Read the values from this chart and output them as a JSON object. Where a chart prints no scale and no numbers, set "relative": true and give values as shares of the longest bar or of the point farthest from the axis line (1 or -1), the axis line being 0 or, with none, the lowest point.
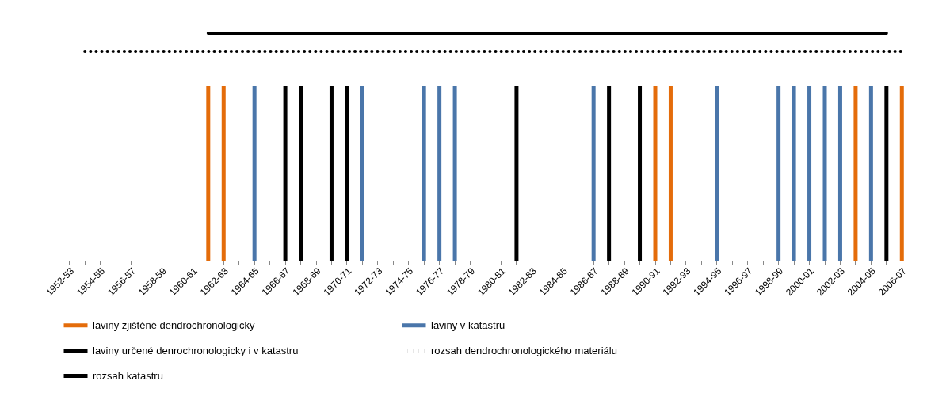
{
  "chart_data": {
    "type": "bar",
    "relative": true,
    "legend": "bottom",
    "grid": false,
    "categories": [
      "1952-53",
      null,
      "1954-55",
      null,
      "1956-57",
      null,
      "1958-59",
      null,
      "1960-61",
      null,
      "1962-63",
      null,
      "1964-65",
      null,
      "1966-67",
      null,
      "1968-69",
      null,
      "1970-71",
      null,
      "1972-73",
      null,
      "1974-75",
      null,
      "1976-77",
      null,
      "1978-79",
      null,
      "1980-81",
      null,
      "1982-83",
      null,
      "1984-85",
      null,
      "1986-87",
      null,
      "1988-89",
      null,
      "1990-91",
      null,
      "1992-93",
      null,
      "1994-95",
      null,
      "1996-97",
      null,
      "1998-99",
      null,
      "2000-01",
      null,
      "2002-03",
      null,
      "2004-05",
      null,
      "2006-07"
    ],
    "series": [
      {
        "name": "laviny zjištěné dendrochronologicky",
        "color": "#e46c0a",
        "values": [
          null,
          null,
          null,
          null,
          null,
          null,
          null,
          null,
          null,
          0.77,
          0.77,
          null,
          null,
          null,
          null,
          null,
          null,
          null,
          null,
          null,
          null,
          null,
          null,
          null,
          null,
          null,
          null,
          null,
          null,
          null,
          null,
          null,
          null,
          null,
          null,
          null,
          null,
          null,
          0.77,
          0.77,
          null,
          null,
          null,
          null,
          null,
          null,
          null,
          null,
          null,
          null,
          null,
          0.77,
          null,
          null,
          0.77
        ]
      },
      {
        "name": "laviny v katastru",
        "color": "#4a76aa",
        "values": [
          null,
          null,
          null,
          null,
          null,
          null,
          null,
          null,
          null,
          null,
          null,
          null,
          0.77,
          null,
          null,
          null,
          null,
          null,
          null,
          0.77,
          null,
          null,
          null,
          0.77,
          0.77,
          0.77,
          null,
          null,
          null,
          null,
          null,
          null,
          null,
          null,
          0.77,
          null,
          null,
          null,
          null,
          null,
          null,
          null,
          0.77,
          null,
          null,
          null,
          0.77,
          0.77,
          0.77,
          0.77,
          0.77,
          null,
          0.77,
          null,
          null
        ]
      },
      {
        "name": "laviny určené denrochronologicky i v katastru",
        "color": "#000000",
        "values": [
          null,
          null,
          null,
          null,
          null,
          null,
          null,
          null,
          null,
          null,
          null,
          null,
          null,
          null,
          0.77,
          0.77,
          null,
          0.77,
          0.77,
          null,
          null,
          null,
          null,
          null,
          null,
          null,
          null,
          null,
          null,
          0.77,
          null,
          null,
          null,
          null,
          null,
          0.77,
          null,
          0.77,
          null,
          null,
          null,
          null,
          null,
          null,
          null,
          null,
          null,
          null,
          null,
          null,
          null,
          null,
          null,
          0.77,
          null
        ]
      },
      {
        "name": "rozsah dendrochronologického materiálu",
        "type": "line",
        "line_style": "dotted",
        "color": "#000000",
        "values": [
          null,
          0.92,
          0.92,
          0.92,
          0.92,
          0.92,
          0.92,
          0.92,
          0.92,
          0.92,
          0.92,
          0.92,
          0.92,
          0.92,
          0.92,
          0.92,
          0.92,
          0.92,
          0.92,
          0.92,
          0.92,
          0.92,
          0.92,
          0.92,
          0.92,
          0.92,
          0.92,
          0.92,
          0.92,
          0.92,
          0.92,
          0.92,
          0.92,
          0.92,
          0.92,
          0.92,
          0.92,
          0.92,
          0.92,
          0.92,
          0.92,
          0.92,
          0.92,
          0.92,
          0.92,
          0.92,
          0.92,
          0.92,
          0.92,
          0.92,
          0.92,
          0.92,
          0.92,
          0.92,
          0.92
        ]
      },
      {
        "name": "rozsah katastru",
        "type": "line",
        "line_style": "solid",
        "color": "#000000",
        "values": [
          null,
          null,
          null,
          null,
          null,
          null,
          null,
          null,
          null,
          1,
          1,
          1,
          1,
          1,
          1,
          1,
          1,
          1,
          1,
          1,
          1,
          1,
          1,
          1,
          1,
          1,
          1,
          1,
          1,
          1,
          1,
          1,
          1,
          1,
          1,
          1,
          1,
          1,
          1,
          1,
          1,
          1,
          1,
          1,
          1,
          1,
          1,
          1,
          1,
          1,
          1,
          1,
          1,
          1,
          null
        ]
      }
    ]
  }
}
